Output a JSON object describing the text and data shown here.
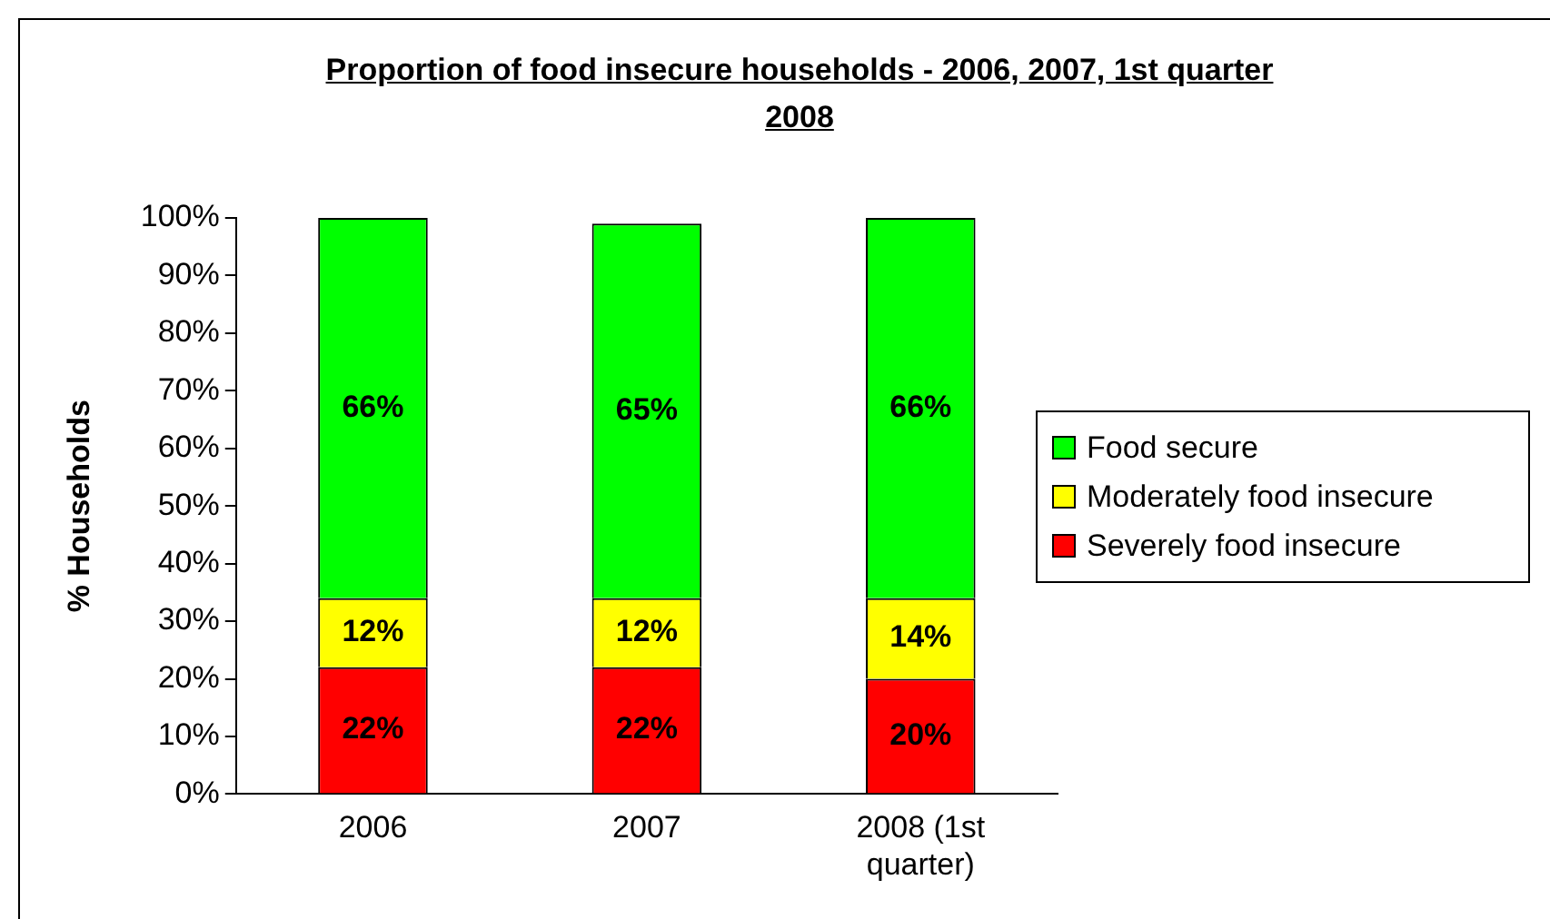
{
  "chart_data": {
    "type": "bar",
    "title": "Proportion of food insecure households - 2006, 2007, 1st quarter 2008",
    "ylabel": "% Households",
    "categories": [
      "2006",
      "2007",
      "2008 (1st quarter)"
    ],
    "stacked": true,
    "series": [
      {
        "name": "Severely food insecure",
        "color": "#ff0000",
        "values": [
          22,
          22,
          20
        ],
        "value_labels": [
          "22%",
          "22%",
          "20%"
        ]
      },
      {
        "name": "Moderately food insecure",
        "color": "#ffff00",
        "values": [
          12,
          12,
          14
        ],
        "value_labels": [
          "12%",
          "12%",
          "14%"
        ]
      },
      {
        "name": "Food secure",
        "color": "#00ff00",
        "values": [
          66,
          65,
          66
        ],
        "value_labels": [
          "66%",
          "65%",
          "66%"
        ]
      }
    ],
    "ylim": [
      0,
      100
    ],
    "yticks": [
      {
        "value": 0,
        "label": "0%"
      },
      {
        "value": 10,
        "label": "10%"
      },
      {
        "value": 20,
        "label": "20%"
      },
      {
        "value": 30,
        "label": "30%"
      },
      {
        "value": 40,
        "label": "40%"
      },
      {
        "value": 50,
        "label": "50%"
      },
      {
        "value": 60,
        "label": "60%"
      },
      {
        "value": 70,
        "label": "70%"
      },
      {
        "value": 80,
        "label": "80%"
      },
      {
        "value": 90,
        "label": "90%"
      },
      {
        "value": 100,
        "label": "100%"
      }
    ],
    "grid": false,
    "legend": "right"
  }
}
